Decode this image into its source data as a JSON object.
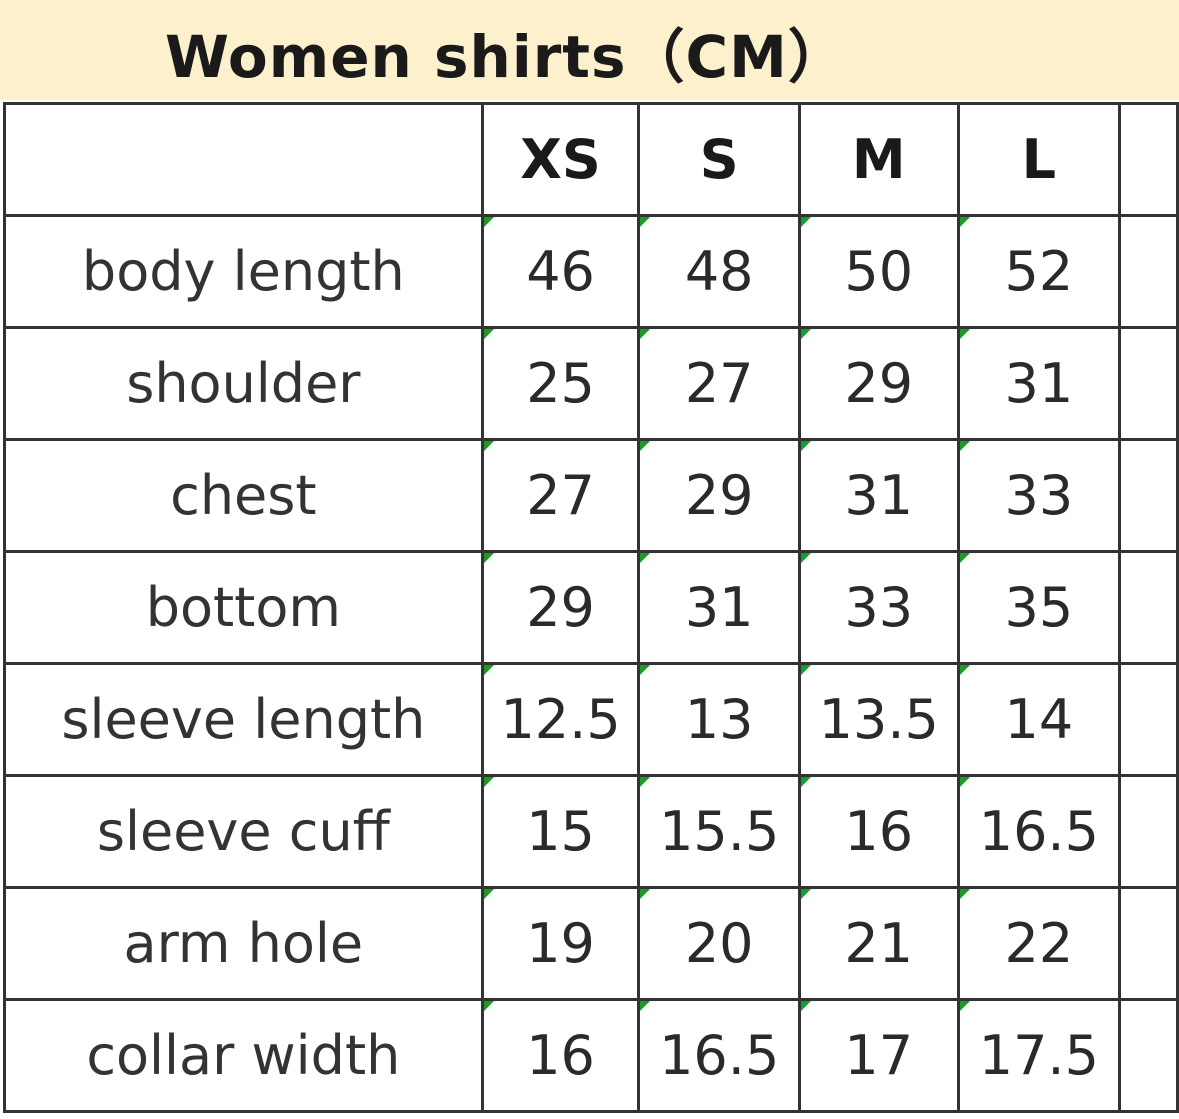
{
  "title": "Women shirts（CM）",
  "columns": [
    "",
    "XS",
    "S",
    "M",
    "L",
    ""
  ],
  "rows": [
    {
      "label": "body length",
      "values": [
        "46",
        "48",
        "50",
        "52"
      ]
    },
    {
      "label": "shoulder",
      "values": [
        "25",
        "27",
        "29",
        "31"
      ]
    },
    {
      "label": "chest",
      "values": [
        "27",
        "29",
        "31",
        "33"
      ]
    },
    {
      "label": "bottom",
      "values": [
        "29",
        "31",
        "33",
        "35"
      ]
    },
    {
      "label": "sleeve length",
      "values": [
        "12.5",
        "13",
        "13.5",
        "14"
      ]
    },
    {
      "label": "sleeve cuff",
      "values": [
        "15",
        "15.5",
        "16",
        "16.5"
      ]
    },
    {
      "label": "arm hole",
      "values": [
        "19",
        "20",
        "21",
        "22"
      ]
    },
    {
      "label": "collar width",
      "values": [
        "16",
        "16.5",
        "17",
        "17.5"
      ]
    }
  ],
  "colors": {
    "title_background": "#fdf1cd",
    "grid": "#333333",
    "cell_marker": "#1a9a2a"
  }
}
